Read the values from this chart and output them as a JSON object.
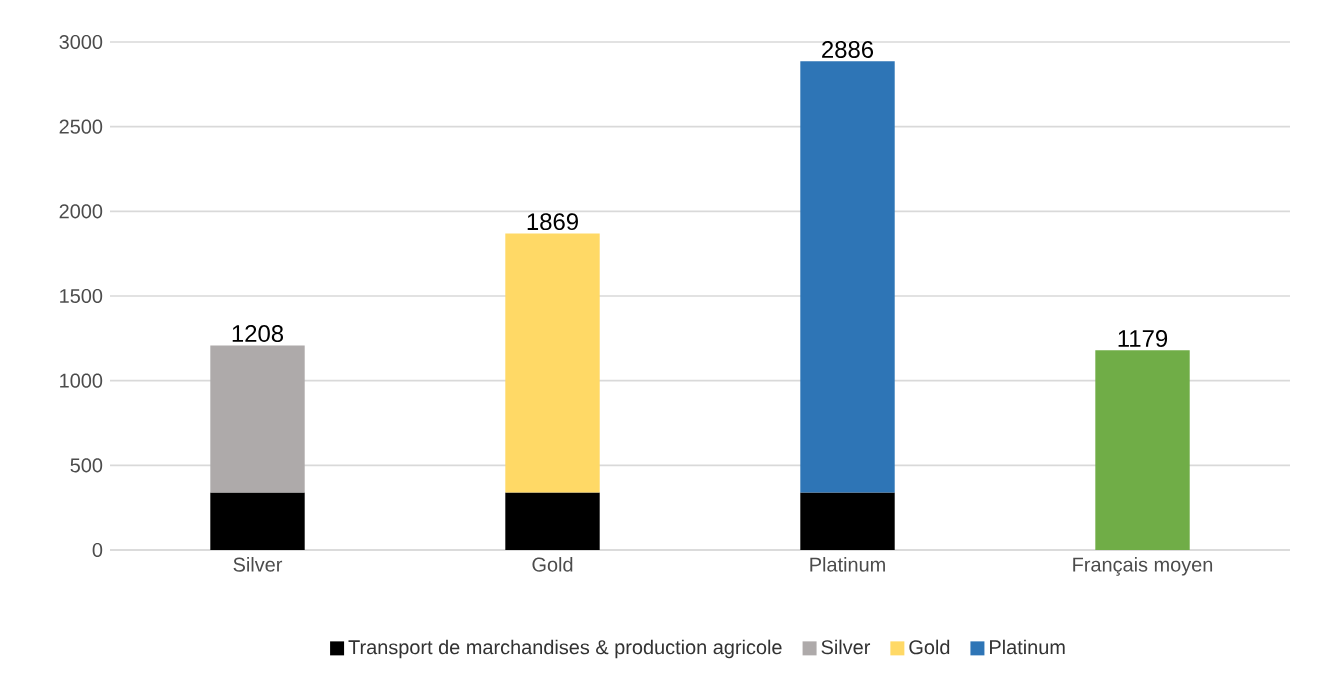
{
  "chart_data": {
    "type": "bar",
    "stacked": true,
    "categories": [
      "Silver",
      "Gold",
      "Platinum",
      "Français moyen"
    ],
    "series": [
      {
        "name": "Transport de marchandises & production agricole",
        "color": "#000000",
        "values": [
          340,
          340,
          340,
          null
        ]
      },
      {
        "name": "Silver",
        "color": "#aeaaaa",
        "values": [
          868,
          null,
          null,
          null
        ]
      },
      {
        "name": "Gold",
        "color": "#ffd966",
        "values": [
          null,
          1529,
          null,
          null
        ]
      },
      {
        "name": "Platinum",
        "color": "#2e75b6",
        "values": [
          null,
          null,
          2546,
          null
        ]
      },
      {
        "color": "#70ad47",
        "values": [
          null,
          null,
          null,
          1179
        ]
      }
    ],
    "totals": [
      "1208",
      "1869",
      "2886",
      "1179"
    ],
    "ylim": [
      0,
      3000
    ],
    "yticks": [
      0,
      500,
      1000,
      1500,
      2000,
      2500,
      3000
    ],
    "grid": "y",
    "legend": "bottom"
  }
}
